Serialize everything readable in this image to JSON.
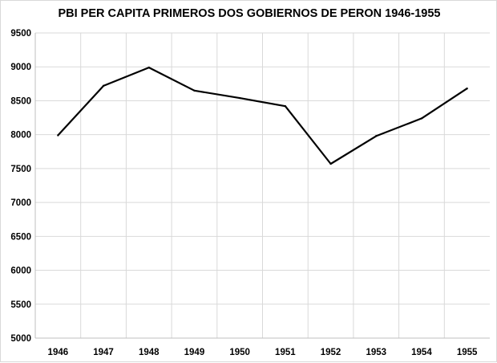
{
  "chart_data": {
    "type": "line",
    "title": "PBI PER CAPITA PRIMEROS  DOS GOBIERNOS  DE PERON 1946-1955",
    "xlabel": "",
    "ylabel": "",
    "categories": [
      "1946",
      "1947",
      "1948",
      "1949",
      "1950",
      "1951",
      "1952",
      "1953",
      "1954",
      "1955"
    ],
    "series": [
      {
        "values": [
          7990,
          8720,
          8990,
          8650,
          8540,
          8420,
          7570,
          7980,
          8240,
          8680
        ]
      }
    ],
    "ylim": [
      5000,
      9500
    ],
    "yticks": [
      "5000",
      "5500",
      "6000",
      "6500",
      "7000",
      "7500",
      "8000",
      "8500",
      "9000",
      "9500"
    ],
    "grid": true,
    "legend": "none",
    "colors": {
      "line": "#000000",
      "grid": "#d9d9d9",
      "axis": "#bfbfbf"
    }
  }
}
